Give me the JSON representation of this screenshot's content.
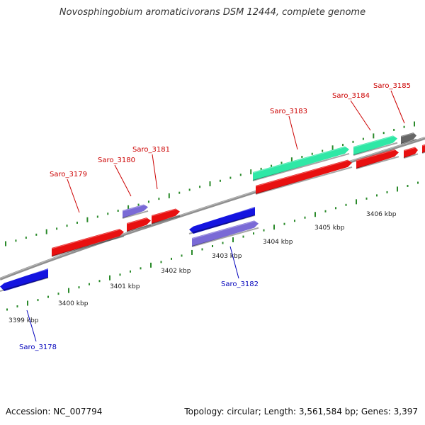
{
  "title": "Novosphingobium aromaticivorans DSM 12444, complete genome",
  "footer": {
    "accession": "Accession: NC_007794",
    "summary": "Topology: circular; Length: 3,561,584 bp; Genes: 3,397"
  },
  "colors": {
    "backbone": "#8f8f8f",
    "tick": "#2a8a2a",
    "red": "#e81010",
    "blue": "#1414e0",
    "violet": "#7a6ad6",
    "teal": "#2fe8a6",
    "grey": "#666666",
    "label_red": "#cc0000",
    "label_blue": "#0000bb"
  },
  "kbp_labels": [
    "3399 kbp",
    "3400 kbp",
    "3401 kbp",
    "3402 kbp",
    "3403 kbp",
    "3404 kbp",
    "3405 kbp",
    "3406 kbp"
  ],
  "genes": [
    {
      "name": "Saro_3178",
      "color": "label_blue"
    },
    {
      "name": "Saro_3179",
      "color": "label_red"
    },
    {
      "name": "Saro_3180",
      "color": "label_red"
    },
    {
      "name": "Saro_3181",
      "color": "label_red"
    },
    {
      "name": "Saro_3182",
      "color": "label_blue"
    },
    {
      "name": "Saro_3183",
      "color": "label_red"
    },
    {
      "name": "Saro_3184",
      "color": "label_red"
    },
    {
      "name": "Saro_3185",
      "color": "label_red"
    }
  ]
}
